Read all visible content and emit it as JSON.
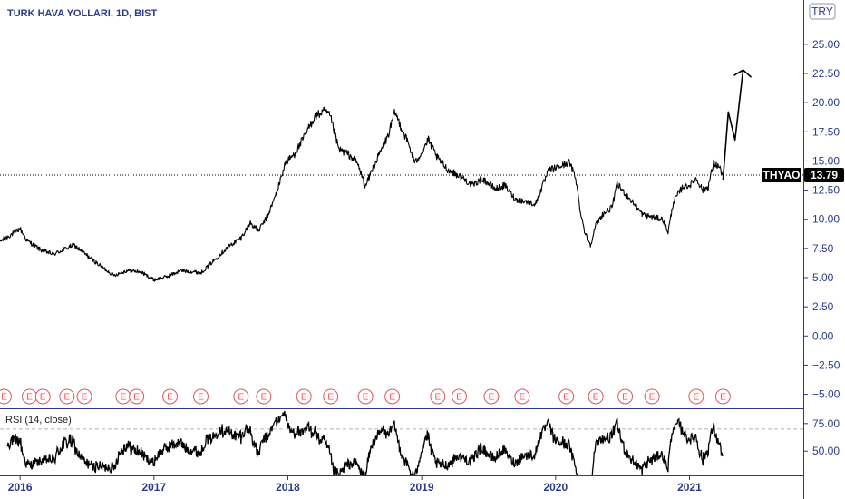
{
  "chart_data": [
    {
      "type": "line",
      "title": "TURK HAVA YOLLARI, 1D, BIST",
      "currency": "TRY",
      "symbol": "THYAO",
      "last_value": 13.79,
      "last_value_label": "13.79",
      "ylim": [
        -6.2,
        28.8
      ],
      "y_ticks": [
        25,
        22.5,
        20,
        17.5,
        15,
        12.5,
        10,
        7.5,
        5,
        2.5,
        0,
        -2.5,
        -5
      ],
      "y_tick_labels": [
        "25.00",
        "22.50",
        "20.00",
        "17.50",
        "15.00",
        "12.50",
        "10.00",
        "7.50",
        "5.00",
        "2.50",
        "0.00",
        "−2.50",
        "−5.00"
      ],
      "xlim": [
        2015.85,
        2021.85
      ],
      "x_ticks": [
        2016,
        2017,
        2018,
        2019,
        2020,
        2021
      ],
      "x_tick_labels": [
        "2016",
        "2017",
        "2018",
        "2019",
        "2020",
        "2021"
      ],
      "price_key_points": [
        [
          2015.85,
          8.1
        ],
        [
          2015.95,
          8.8
        ],
        [
          2016.0,
          9.2
        ],
        [
          2016.05,
          8.2
        ],
        [
          2016.15,
          7.4
        ],
        [
          2016.25,
          7.0
        ],
        [
          2016.4,
          7.8
        ],
        [
          2016.5,
          6.9
        ],
        [
          2016.6,
          6.0
        ],
        [
          2016.7,
          5.2
        ],
        [
          2016.8,
          5.6
        ],
        [
          2016.9,
          5.5
        ],
        [
          2017.0,
          4.8
        ],
        [
          2017.1,
          5.1
        ],
        [
          2017.2,
          5.6
        ],
        [
          2017.3,
          5.5
        ],
        [
          2017.35,
          5.4
        ],
        [
          2017.45,
          6.5
        ],
        [
          2017.55,
          7.6
        ],
        [
          2017.65,
          8.4
        ],
        [
          2017.72,
          9.7
        ],
        [
          2017.78,
          9.0
        ],
        [
          2017.85,
          10.3
        ],
        [
          2017.92,
          12.4
        ],
        [
          2017.98,
          14.8
        ],
        [
          2018.05,
          15.6
        ],
        [
          2018.12,
          17.0
        ],
        [
          2018.2,
          18.8
        ],
        [
          2018.28,
          19.3
        ],
        [
          2018.32,
          18.7
        ],
        [
          2018.38,
          16.0
        ],
        [
          2018.45,
          15.6
        ],
        [
          2018.52,
          14.8
        ],
        [
          2018.58,
          12.8
        ],
        [
          2018.62,
          14.0
        ],
        [
          2018.68,
          15.5
        ],
        [
          2018.75,
          17.2
        ],
        [
          2018.8,
          19.2
        ],
        [
          2018.85,
          17.8
        ],
        [
          2018.9,
          16.5
        ],
        [
          2018.95,
          14.8
        ],
        [
          2019.0,
          15.8
        ],
        [
          2019.05,
          16.8
        ],
        [
          2019.12,
          15.2
        ],
        [
          2019.2,
          14.2
        ],
        [
          2019.3,
          13.6
        ],
        [
          2019.38,
          12.9
        ],
        [
          2019.45,
          13.5
        ],
        [
          2019.55,
          12.6
        ],
        [
          2019.62,
          12.9
        ],
        [
          2019.7,
          11.7
        ],
        [
          2019.78,
          11.5
        ],
        [
          2019.85,
          11.3
        ],
        [
          2019.9,
          12.8
        ],
        [
          2019.95,
          14.2
        ],
        [
          2020.0,
          14.4
        ],
        [
          2020.05,
          14.6
        ],
        [
          2020.1,
          14.9
        ],
        [
          2020.15,
          13.6
        ],
        [
          2020.18,
          11.0
        ],
        [
          2020.22,
          8.8
        ],
        [
          2020.26,
          7.8
        ],
        [
          2020.3,
          9.5
        ],
        [
          2020.35,
          10.4
        ],
        [
          2020.42,
          11.0
        ],
        [
          2020.46,
          13.0
        ],
        [
          2020.52,
          12.2
        ],
        [
          2020.58,
          11.4
        ],
        [
          2020.65,
          10.4
        ],
        [
          2020.72,
          10.2
        ],
        [
          2020.8,
          10.0
        ],
        [
          2020.84,
          8.9
        ],
        [
          2020.88,
          11.5
        ],
        [
          2020.95,
          12.8
        ],
        [
          2021.0,
          12.9
        ],
        [
          2021.05,
          13.5
        ],
        [
          2021.1,
          12.5
        ],
        [
          2021.14,
          12.8
        ],
        [
          2021.18,
          14.8
        ],
        [
          2021.22,
          14.5
        ],
        [
          2021.25,
          13.79
        ]
      ],
      "projection": [
        [
          2021.25,
          13.4
        ],
        [
          2021.29,
          19.2
        ],
        [
          2021.34,
          16.8
        ],
        [
          2021.4,
          22.8
        ]
      ],
      "earnings_label": "E",
      "earnings_x": [
        2015.88,
        2016.07,
        2016.17,
        2016.35,
        2016.48,
        2016.77,
        2016.87,
        2017.12,
        2017.35,
        2017.65,
        2017.82,
        2018.12,
        2018.32,
        2018.58,
        2018.78,
        2019.12,
        2019.28,
        2019.52,
        2019.75,
        2020.08,
        2020.3,
        2020.52,
        2020.72,
        2021.05,
        2021.25
      ]
    },
    {
      "type": "line",
      "title": "RSI (14, close)",
      "ylim": [
        28,
        88
      ],
      "y_ticks": [
        75,
        50
      ],
      "y_tick_labels": [
        "75.00",
        "50.00"
      ],
      "reference_level": 70
    }
  ]
}
